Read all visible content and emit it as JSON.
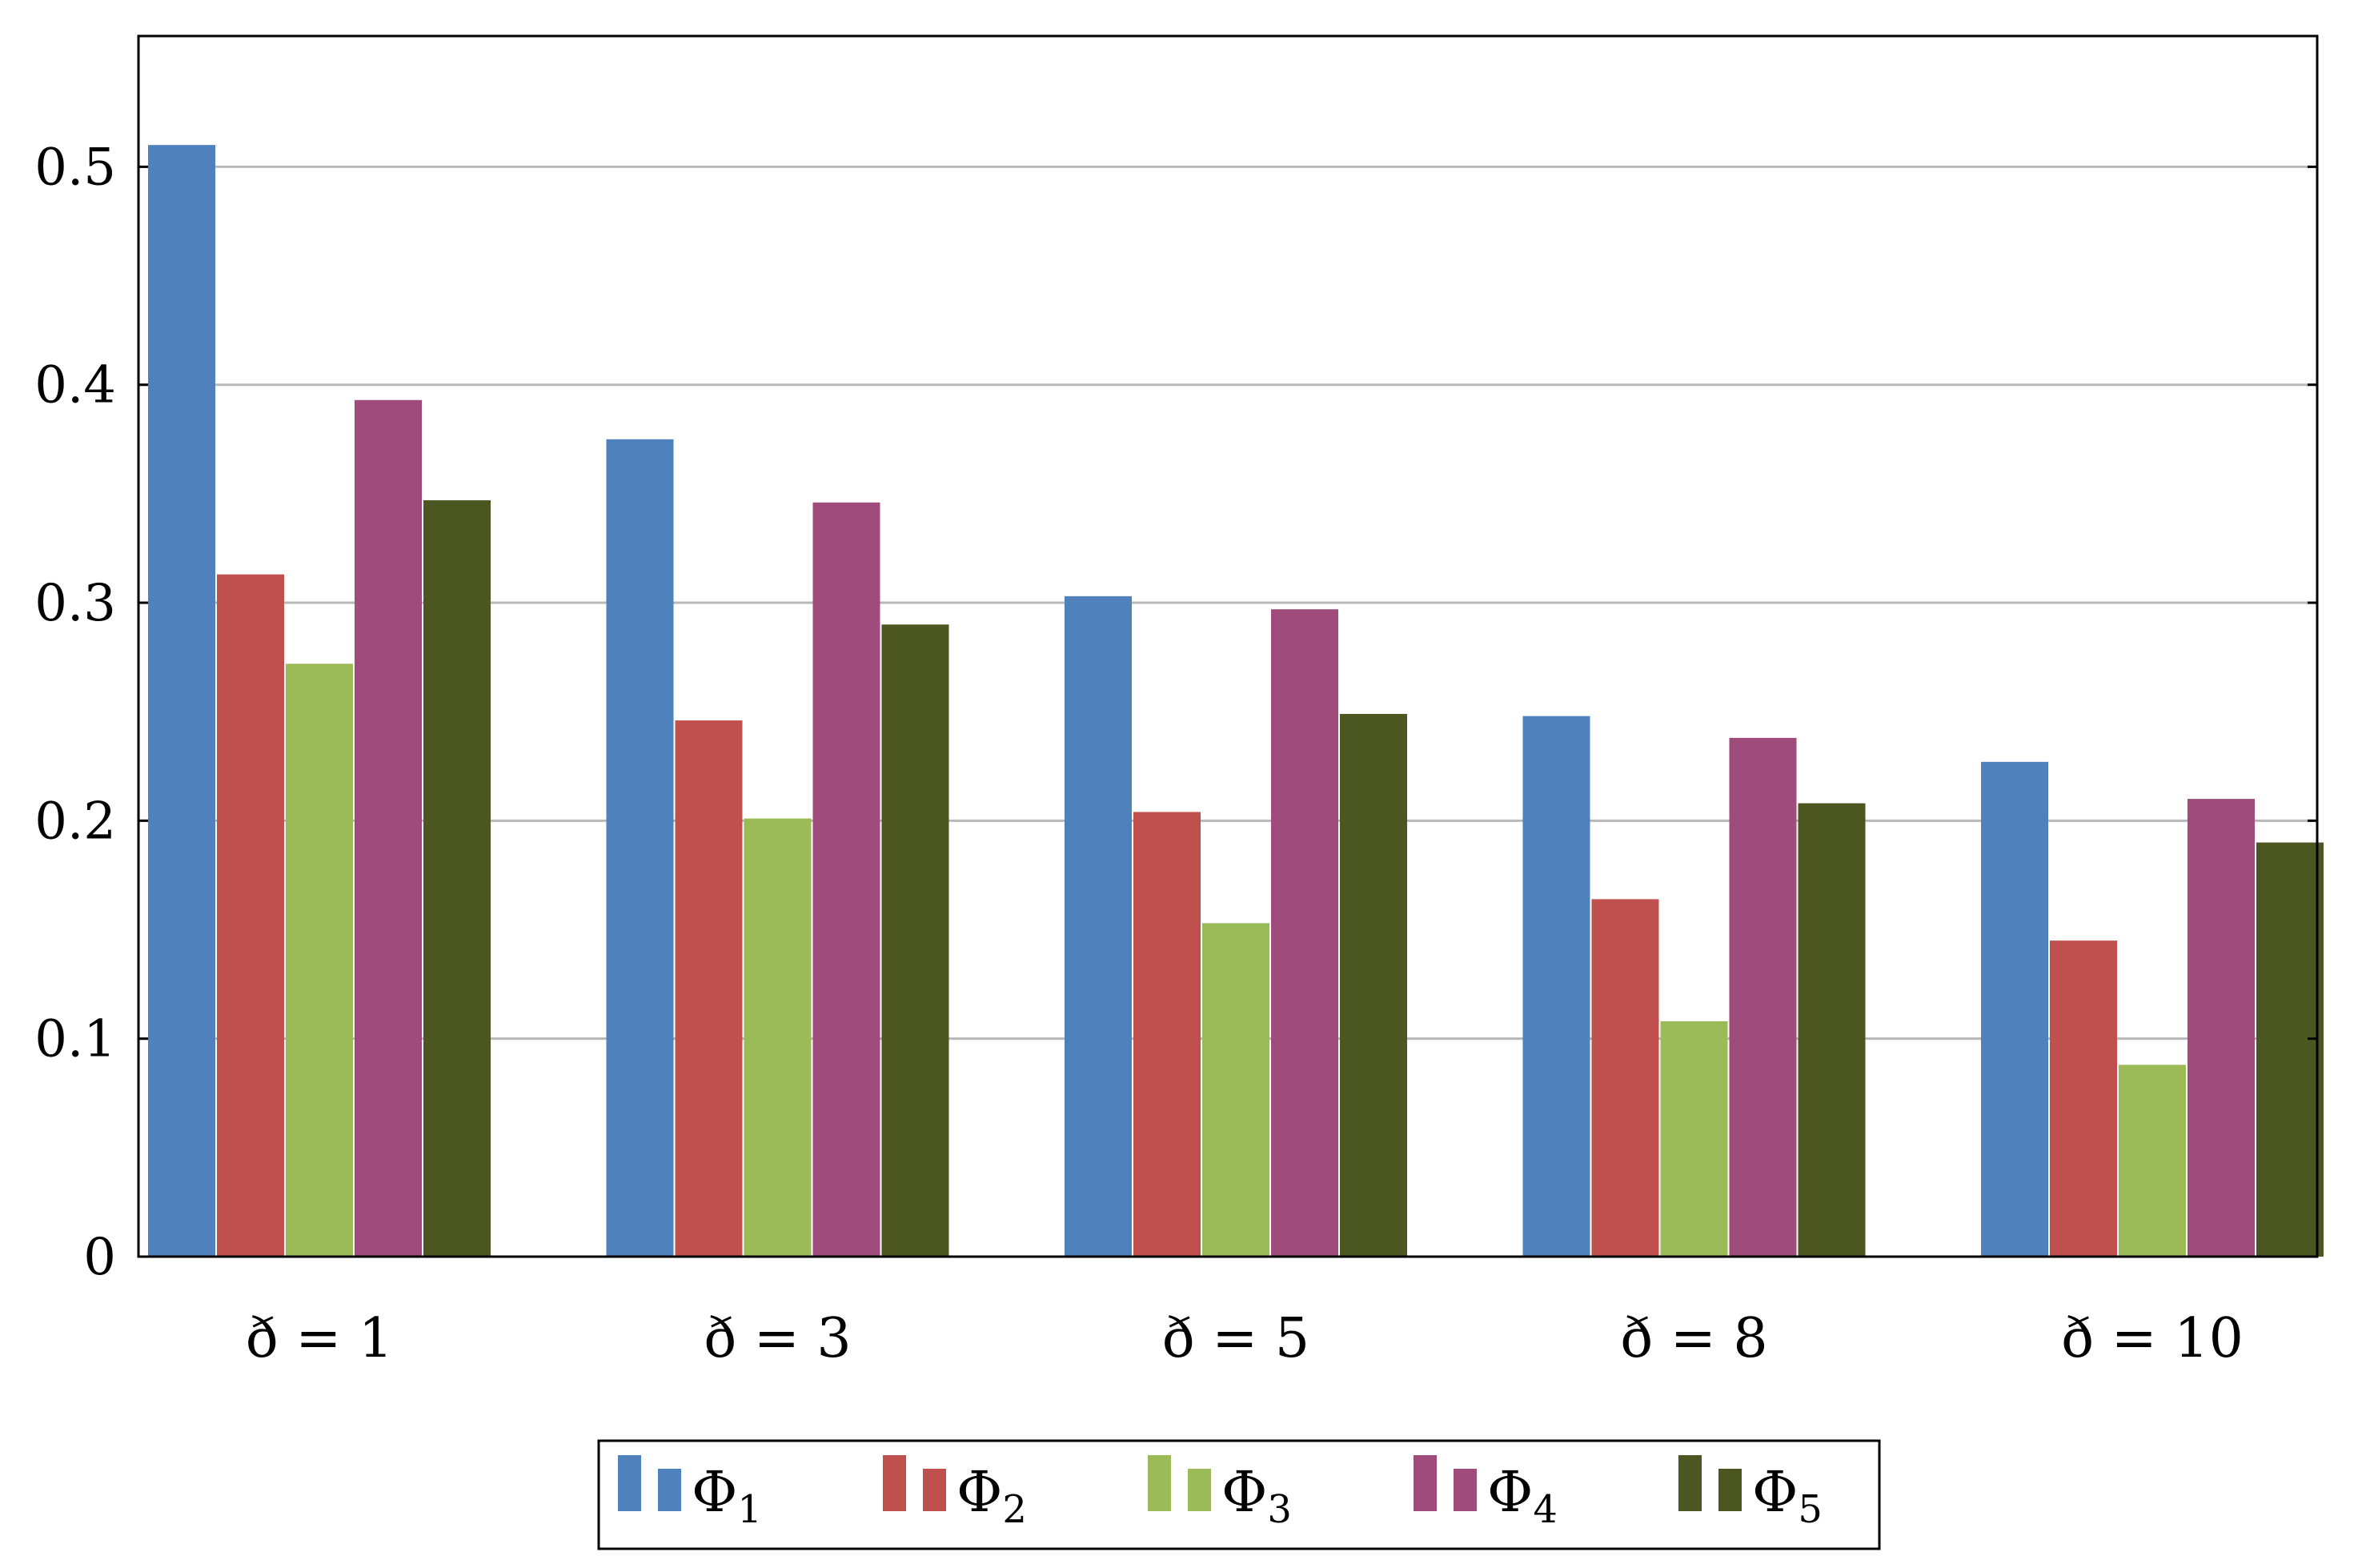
{
  "chart_data": {
    "type": "bar",
    "title": "",
    "xlabel": "",
    "ylabel": "",
    "categories": [
      "ð = 1",
      "ð = 3",
      "ð = 5",
      "ð = 8",
      "ð = 10"
    ],
    "ylim": [
      0,
      0.56
    ],
    "yticks": [
      0,
      0.1,
      0.2,
      0.3,
      0.4,
      0.5
    ],
    "ytick_labels": [
      "0",
      "0.1",
      "0.2",
      "0.3",
      "0.4",
      "0.5"
    ],
    "grid": true,
    "legend_position": "bottom",
    "series": [
      {
        "name": "Φ",
        "subscript": "1",
        "color": "#4F81BD",
        "values": [
          0.51,
          0.375,
          0.303,
          0.248,
          0.227
        ]
      },
      {
        "name": "Φ",
        "subscript": "2",
        "color": "#C0504D",
        "values": [
          0.313,
          0.246,
          0.204,
          0.164,
          0.145
        ]
      },
      {
        "name": "Φ",
        "subscript": "3",
        "color": "#9BBB59",
        "values": [
          0.272,
          0.201,
          0.153,
          0.108,
          0.088
        ]
      },
      {
        "name": "Φ",
        "subscript": "4",
        "color": "#9F4C7C",
        "values": [
          0.393,
          0.346,
          0.297,
          0.238,
          0.21
        ]
      },
      {
        "name": "Φ",
        "subscript": "5",
        "color": "#4B5621",
        "values": [
          0.347,
          0.29,
          0.249,
          0.208,
          0.19
        ]
      }
    ]
  }
}
